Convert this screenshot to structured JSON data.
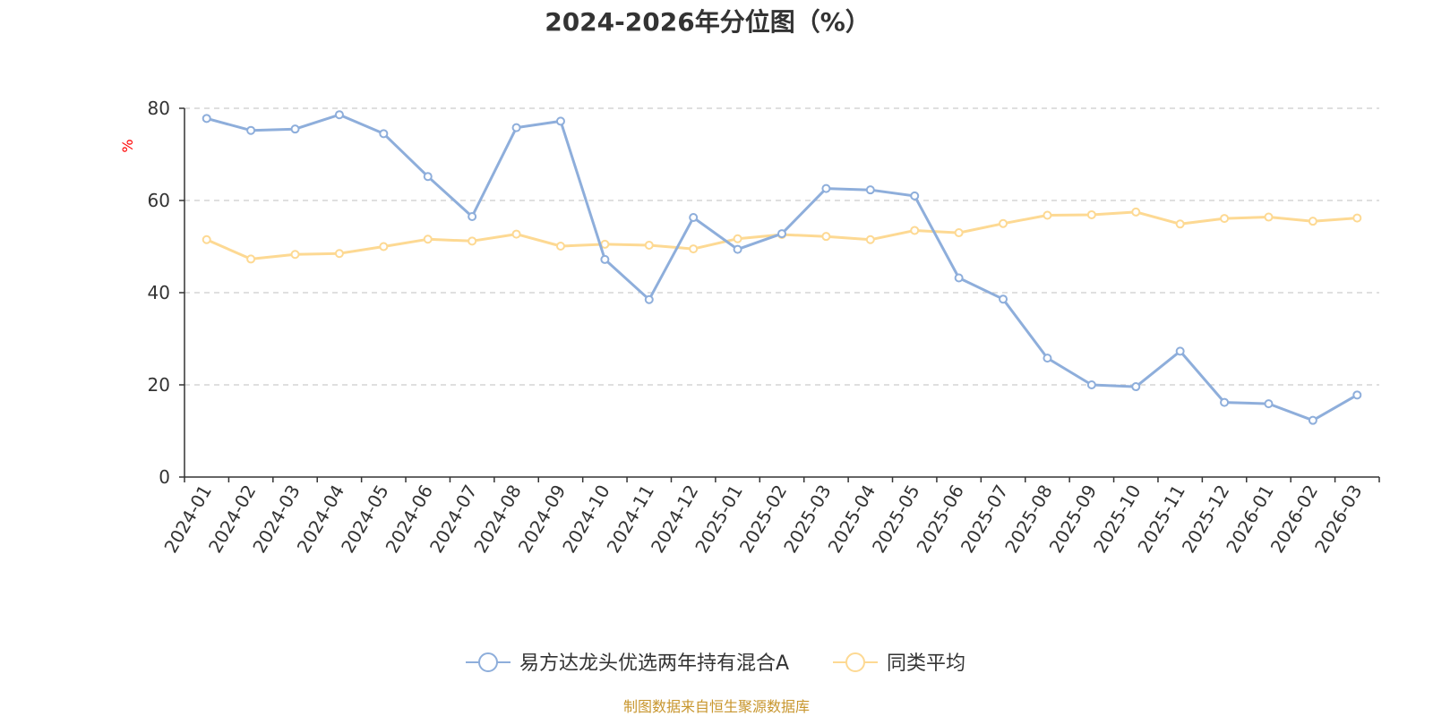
{
  "chart_data": {
    "type": "line",
    "title": "2024-2026年分位图（%）",
    "ylabel": "%",
    "xlabel": "",
    "ylim": [
      0,
      80
    ],
    "yticks": [
      0,
      20,
      40,
      60,
      80
    ],
    "grid": true,
    "legend_position": "bottom-center",
    "categories": [
      "2024-01",
      "2024-02",
      "2024-03",
      "2024-04",
      "2024-05",
      "2024-06",
      "2024-07",
      "2024-08",
      "2024-09",
      "2024-10",
      "2024-11",
      "2024-12",
      "2025-01",
      "2025-02",
      "2025-03",
      "2025-04",
      "2025-05",
      "2025-06",
      "2025-07",
      "2025-08",
      "2025-09",
      "2025-10",
      "2025-11",
      "2025-12",
      "2026-01",
      "2026-02",
      "2026-03"
    ],
    "series": [
      {
        "name": "易方达龙头优选两年持有混合A",
        "color": "#8eaedb",
        "values": [
          77.8,
          75.2,
          75.5,
          78.6,
          74.5,
          65.2,
          56.5,
          75.8,
          77.2,
          47.2,
          38.5,
          56.3,
          49.4,
          52.8,
          62.6,
          62.3,
          61.0,
          43.2,
          38.6,
          25.8,
          20.0,
          19.6,
          27.3,
          16.2,
          15.9,
          12.3,
          17.8
        ]
      },
      {
        "name": "同类平均",
        "color": "#fdd993",
        "values": [
          51.5,
          47.3,
          48.3,
          48.5,
          50.0,
          51.6,
          51.2,
          52.7,
          50.1,
          50.5,
          50.3,
          49.5,
          51.7,
          52.6,
          52.2,
          51.5,
          53.5,
          53.0,
          55.0,
          56.8,
          56.9,
          57.5,
          54.9,
          56.1,
          56.4,
          55.5,
          56.2
        ]
      }
    ]
  },
  "colors": {
    "unit_label": "#ff0000",
    "source_text": "#c8962e",
    "grid": "#cccccc",
    "axis": "#333333"
  },
  "footer": {
    "source": "制图数据来自恒生聚源数据库"
  }
}
